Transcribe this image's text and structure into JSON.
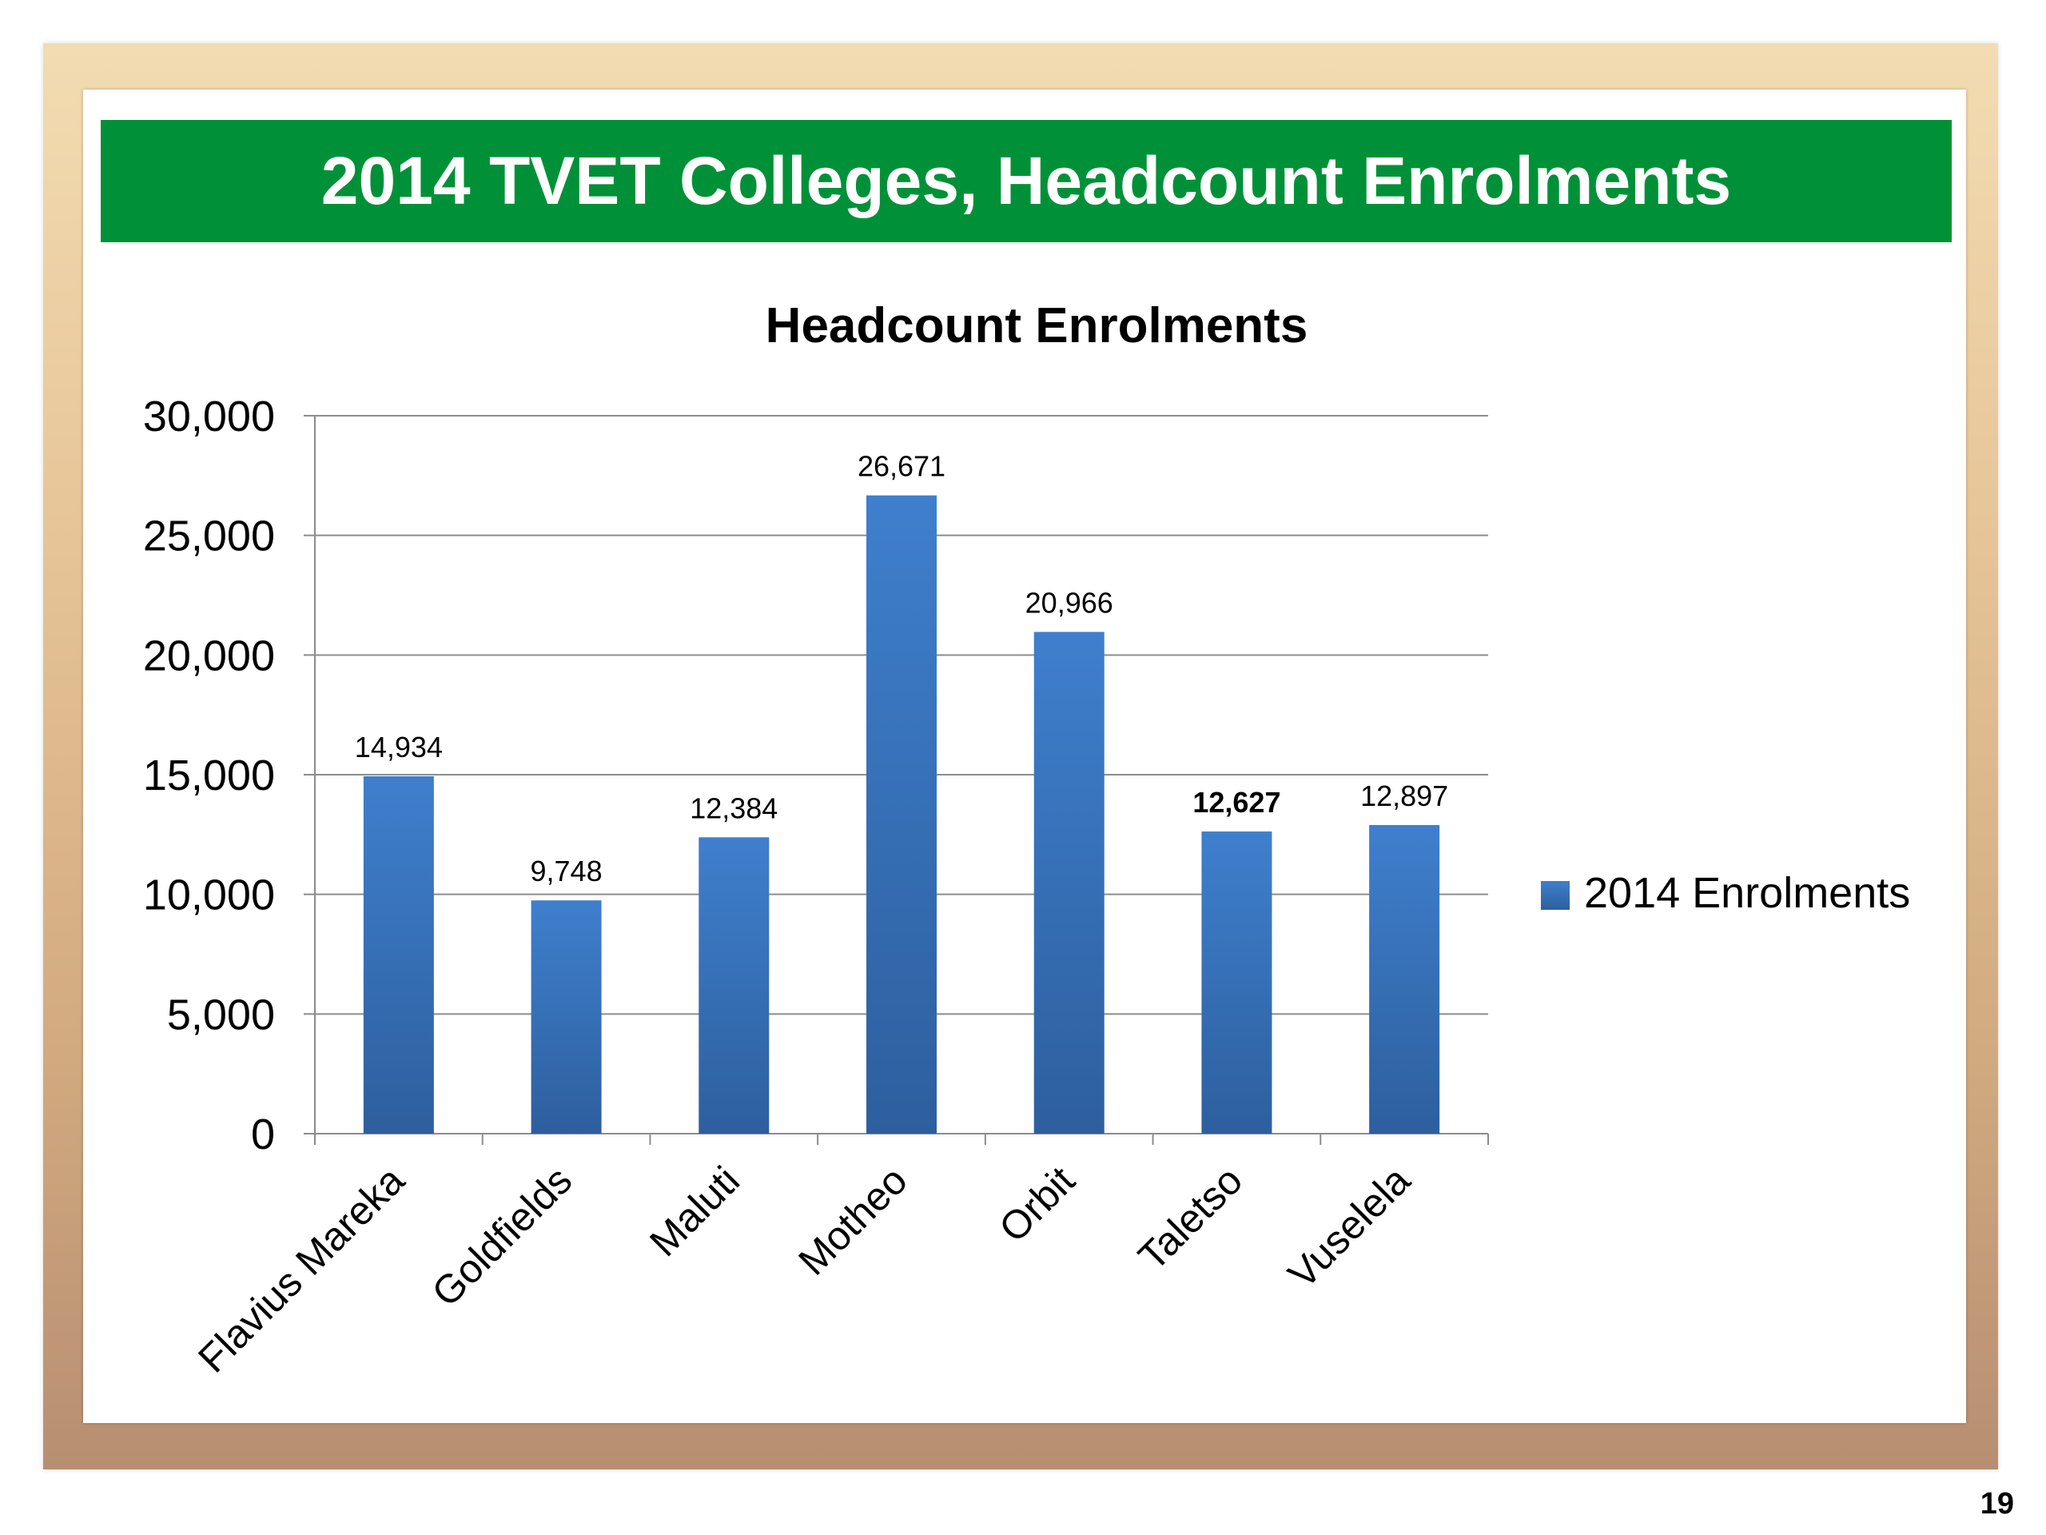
{
  "slide": {
    "title": "2014 TVET Colleges, Headcount Enrolments",
    "page_number": "19"
  },
  "colors": {
    "title_bar": "#009138",
    "bar_top": "#3f7fcd",
    "bar_bottom": "#2d5f9e",
    "gridline": "#8c8c8c"
  },
  "chart_data": {
    "type": "bar",
    "title": "Headcount Enrolments",
    "xlabel": "",
    "ylabel": "",
    "categories": [
      "Flavius Mareka",
      "Goldfields",
      "Maluti",
      "Motheo",
      "Orbit",
      "Taletso",
      "Vuselela"
    ],
    "series": [
      {
        "name": "2014 Enrolments",
        "values": [
          14934,
          9748,
          12384,
          26671,
          20966,
          12627,
          12897
        ],
        "labels": [
          "14,934",
          "9,748",
          "12,384",
          "26,671",
          "20,966",
          "12,627",
          "12,897"
        ]
      }
    ],
    "ylim": [
      0,
      30000
    ],
    "yticks": [
      0,
      5000,
      10000,
      15000,
      20000,
      25000,
      30000
    ],
    "ytick_labels": [
      "0",
      "5,000",
      "10,000",
      "15,000",
      "20,000",
      "25,000",
      "30,000"
    ],
    "grid": true,
    "legend_position": "right"
  }
}
